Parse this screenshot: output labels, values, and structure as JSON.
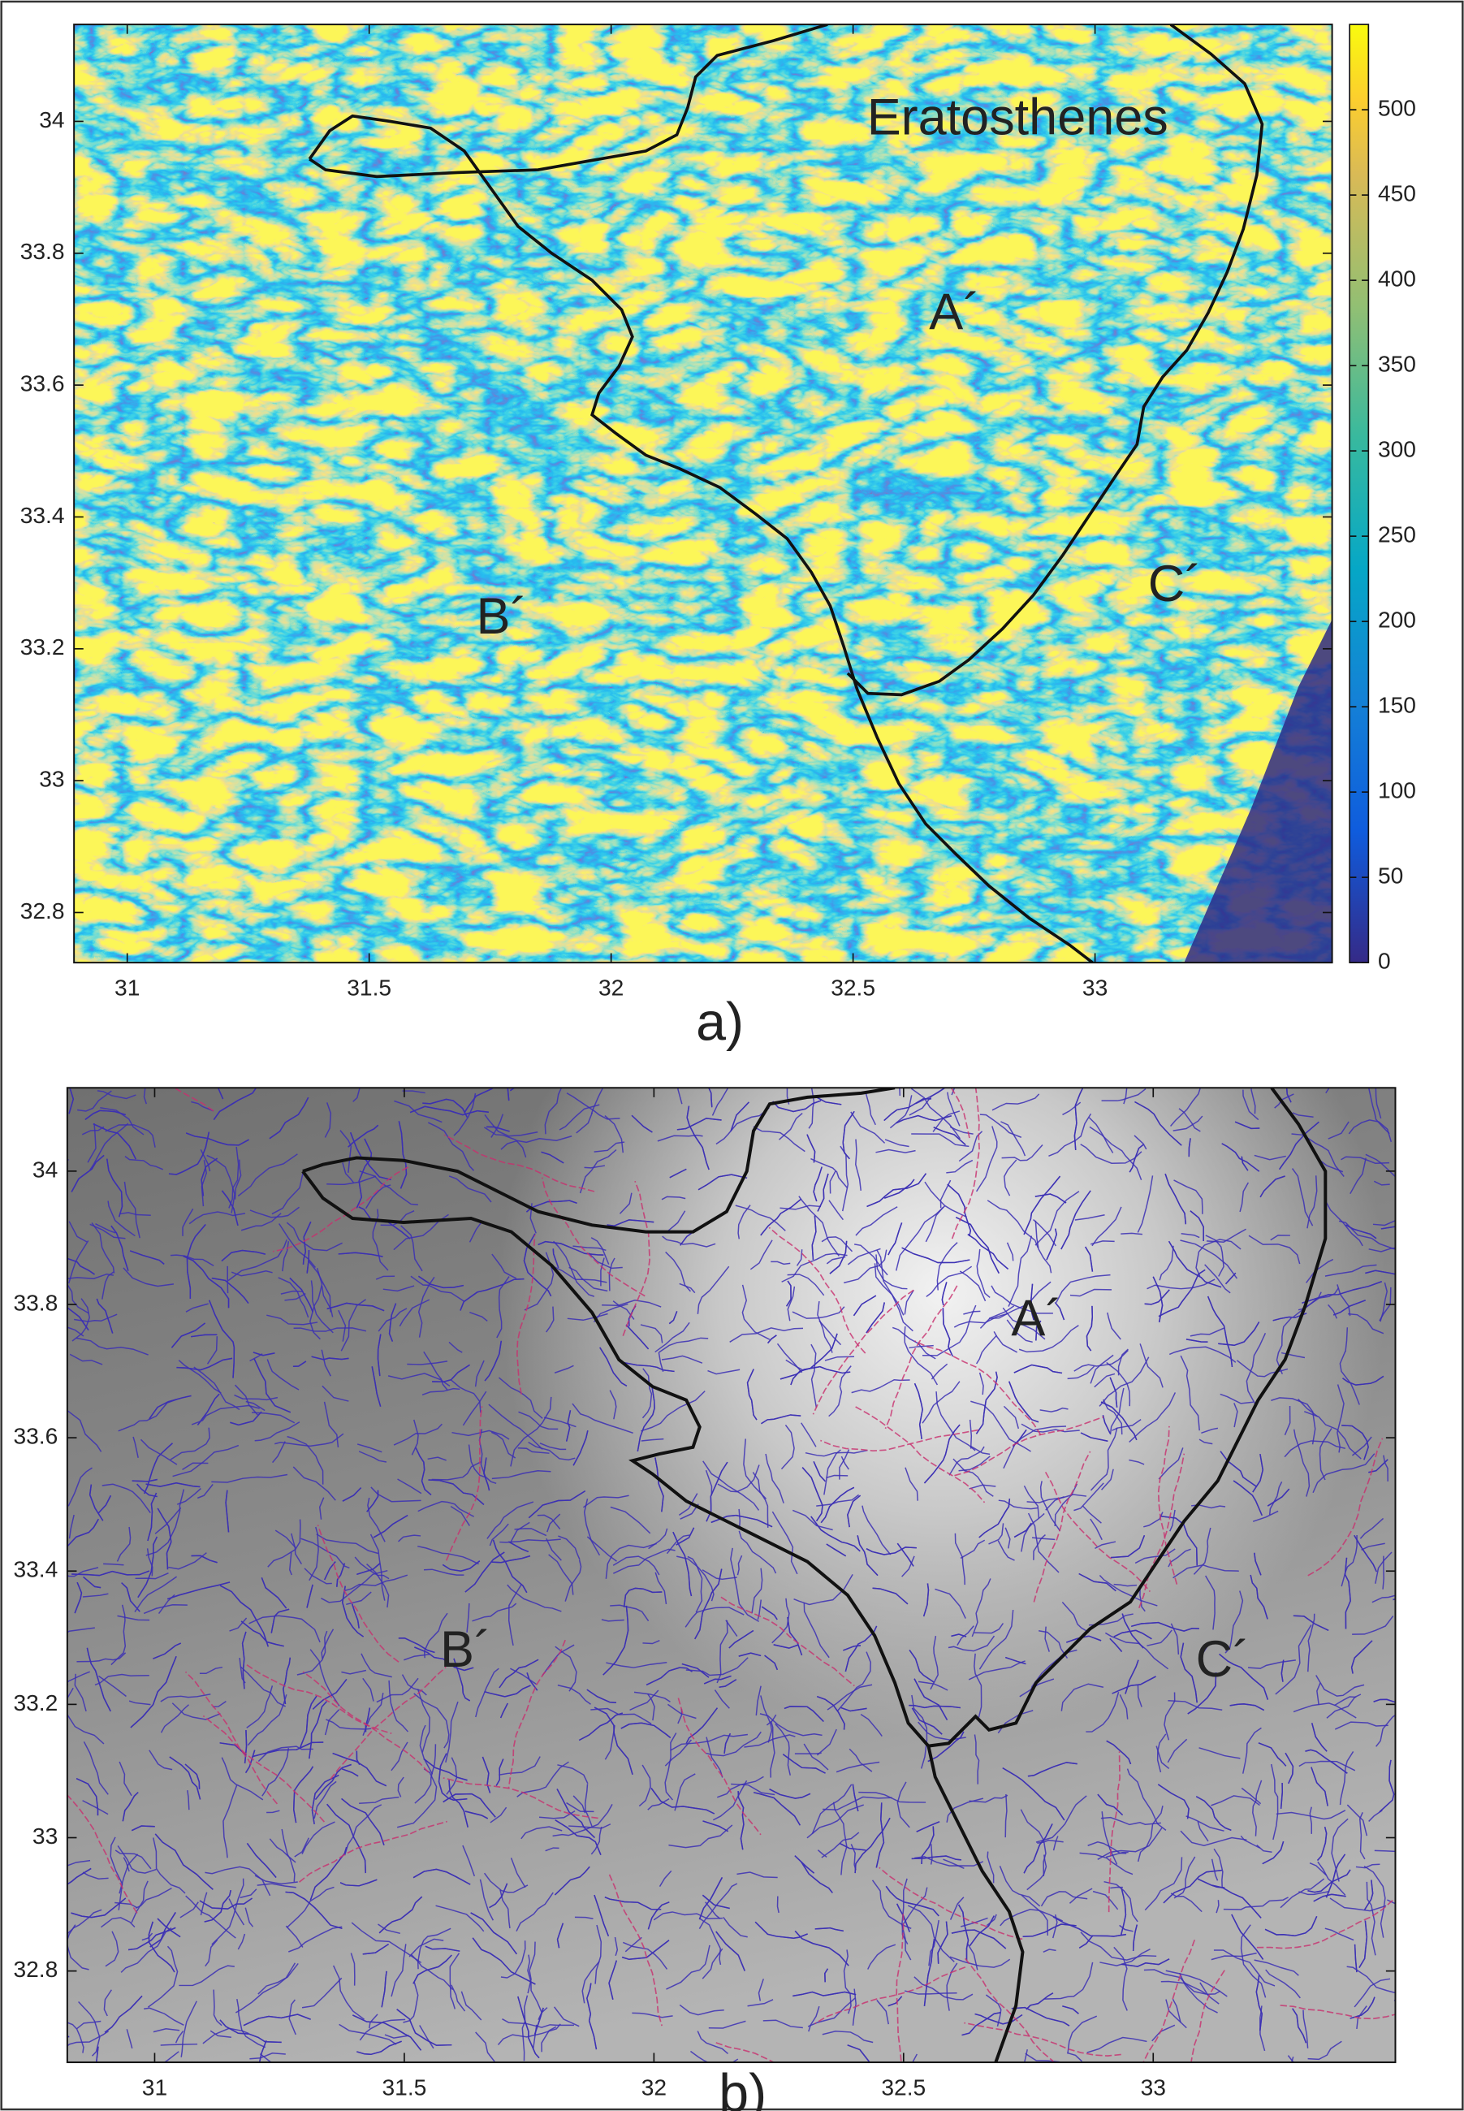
{
  "chart_data": [
    {
      "type": "heatmap",
      "xlim": [
        30.89,
        33.49
      ],
      "ylim": [
        32.724,
        34.147
      ],
      "xticks": [
        31,
        31.5,
        32,
        32.5,
        33
      ],
      "yticks": [
        32.8,
        33,
        33.2,
        33.4,
        33.6,
        33.8,
        34
      ],
      "colorbar_lim": [
        0,
        550
      ],
      "colorbar_ticks": [
        0,
        50,
        100,
        150,
        200,
        250,
        300,
        350,
        400,
        450,
        500
      ],
      "annotations": [
        "Eratosthenes",
        "A´",
        "B´",
        "C´"
      ],
      "caption": "a)"
    },
    {
      "type": "map",
      "xlim": [
        30.825,
        33.485
      ],
      "ylim": [
        32.663,
        34.125
      ],
      "xticks": [
        31,
        31.5,
        32,
        32.5,
        33
      ],
      "yticks": [
        32.8,
        33,
        33.2,
        33.4,
        33.6,
        33.8,
        34
      ],
      "annotations": [
        "A´",
        "B´",
        "C´"
      ],
      "caption": "b)"
    }
  ]
}
